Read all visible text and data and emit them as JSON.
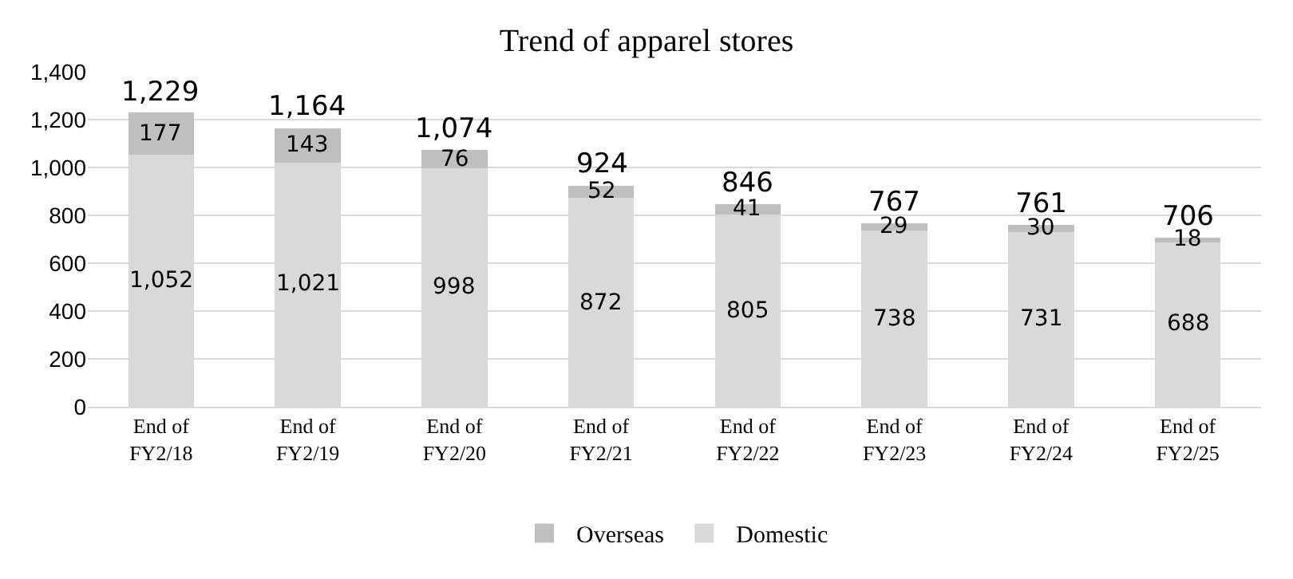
{
  "chart_data": {
    "type": "bar",
    "title": "Trend of apparel stores",
    "categories": [
      "End of\nFY2/18",
      "End of\nFY2/19",
      "End of\nFY2/20",
      "End of\nFY2/21",
      "End of\nFY2/22",
      "End of\nFY2/23",
      "End of\nFY2/24",
      "End of\nFY2/25"
    ],
    "stacked": true,
    "series": [
      {
        "name": "Domestic",
        "color": "#d9d9d9",
        "values": [
          1052,
          1021,
          998,
          872,
          805,
          738,
          731,
          688
        ],
        "value_labels": [
          "1,052",
          "1,021",
          "998",
          "872",
          "805",
          "738",
          "731",
          "688"
        ]
      },
      {
        "name": "Overseas",
        "color": "#bfbfbf",
        "values": [
          177,
          143,
          76,
          52,
          41,
          29,
          30,
          18
        ],
        "value_labels": [
          "177",
          "143",
          "76",
          "52",
          "41",
          "29",
          "30",
          "18"
        ]
      }
    ],
    "totals": [
      "1,229",
      "1,164",
      "1,074",
      "924",
      "846",
      "767",
      "761",
      "706"
    ],
    "ylim": [
      0,
      1400
    ],
    "yticks": [
      0,
      200,
      400,
      600,
      800,
      {
        "value": 1000,
        "label": "1,000"
      },
      {
        "value": 1200,
        "label": "1,200"
      },
      {
        "value": 1400,
        "label": "1,400"
      }
    ],
    "grid": "y",
    "legend": "bottom"
  }
}
